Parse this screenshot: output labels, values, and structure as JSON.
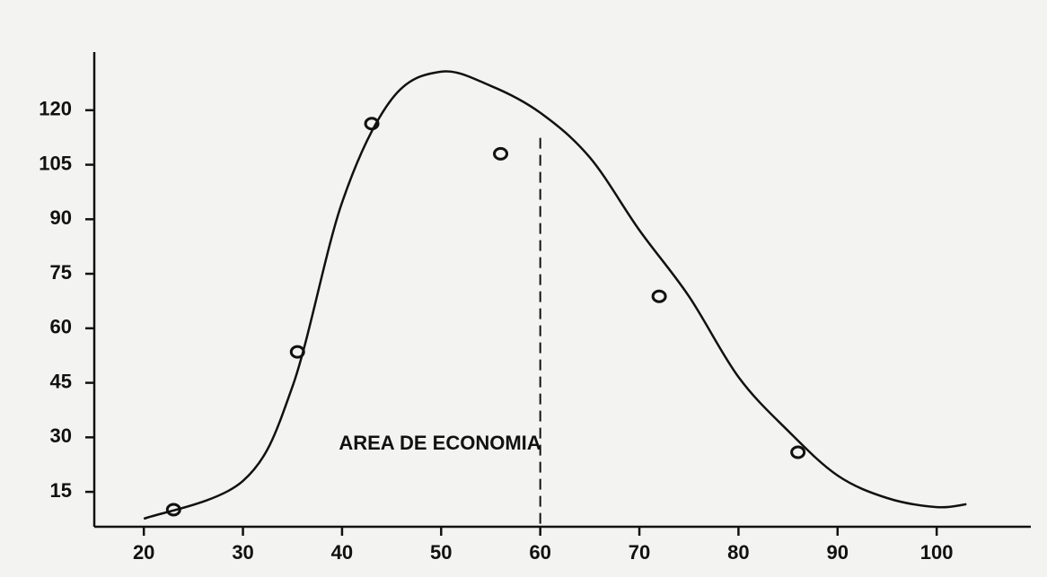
{
  "chart_data": {
    "type": "line",
    "annotation": "AREA DE ECONOMIA",
    "curve": {
      "x": [
        20,
        30,
        35,
        40,
        45,
        50,
        55,
        60,
        65,
        70,
        75,
        80,
        85,
        90,
        95,
        100,
        103
      ],
      "values": [
        7.6,
        18,
        44,
        94.6,
        123,
        130.6,
        126.7,
        119.3,
        107,
        87,
        68.8,
        46.6,
        31.8,
        19.5,
        13.3,
        10.8,
        11.6
      ]
    },
    "points": {
      "x": [
        23,
        35.5,
        43,
        56,
        72,
        86
      ],
      "values": [
        10.1,
        53.5,
        116.3,
        108,
        68.8,
        25.9
      ]
    },
    "vline": 60,
    "color": "#111111",
    "xlim": [
      15,
      109.5
    ],
    "xticks": [
      20,
      30,
      40,
      50,
      60,
      70,
      80,
      90,
      100
    ],
    "ylim": [
      5.4,
      136
    ],
    "yticks": [
      15,
      30,
      45,
      60,
      75,
      90,
      105,
      120
    ]
  }
}
